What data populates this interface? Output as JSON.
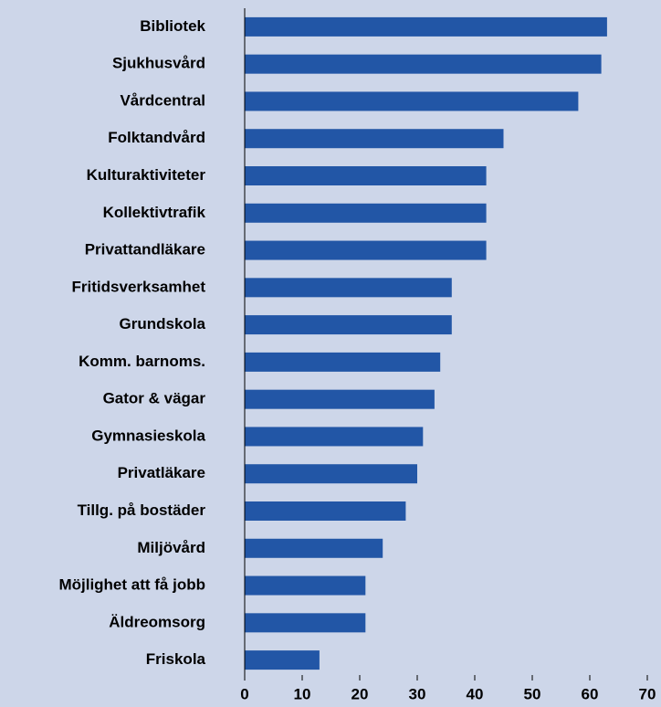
{
  "chart_data": {
    "type": "bar",
    "orientation": "horizontal",
    "categories": [
      "Bibliotek",
      "Sjukhusvård",
      "Vårdcentral",
      "Folktandvård",
      "Kulturaktiviteter",
      "Kollektivtrafik",
      "Privattandläkare",
      "Fritidsverksamhet",
      "Grundskola",
      "Komm. barnoms.",
      "Gator & vägar",
      "Gymnasieskola",
      "Privatläkare",
      "Tillg. på bostäder",
      "Miljövård",
      "Möjlighet att få jobb",
      "Äldreomsorg",
      "Friskola"
    ],
    "values": [
      63,
      62,
      58,
      45,
      42,
      42,
      42,
      36,
      36,
      34,
      33,
      31,
      30,
      28,
      24,
      21,
      21,
      13
    ],
    "color": "#2256a6",
    "xlim": [
      0,
      70
    ],
    "xticks": [
      0,
      10,
      20,
      30,
      40,
      50,
      60,
      70
    ]
  }
}
